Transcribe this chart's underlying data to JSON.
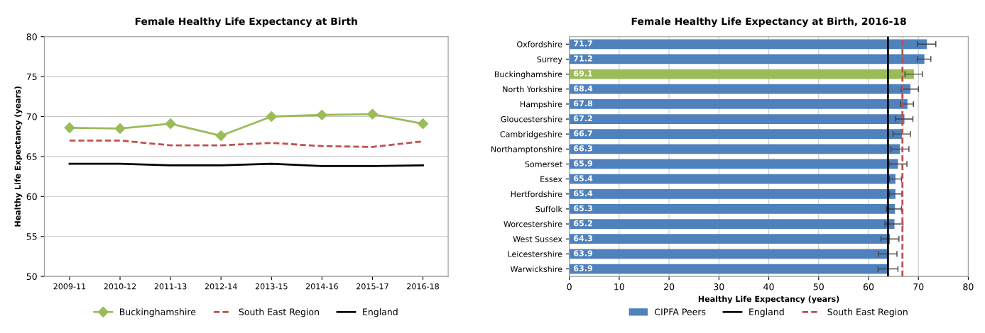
{
  "chart_data": [
    {
      "type": "line",
      "title": "Female Healthy Life Expectancy at Birth",
      "ylabel": "Healthy Life Expectancy (years)",
      "categories": [
        "2009-11",
        "2010-12",
        "2011-13",
        "2012-14",
        "2013-15",
        "2014-16",
        "2015-17",
        "2016-18"
      ],
      "series": [
        {
          "name": "Buckinghamshire",
          "color": "#9bbb59",
          "marker": "diamond",
          "line_style": "solid",
          "values": [
            68.6,
            68.5,
            69.1,
            67.6,
            70.0,
            70.2,
            70.3,
            69.1
          ]
        },
        {
          "name": "South East Region",
          "color": "#c0504d",
          "marker": "none",
          "line_style": "dashed",
          "values": [
            67.0,
            67.0,
            66.4,
            66.4,
            66.7,
            66.3,
            66.2,
            66.9
          ]
        },
        {
          "name": "England",
          "color": "#000000",
          "marker": "none",
          "line_style": "solid",
          "values": [
            64.1,
            64.1,
            63.9,
            63.9,
            64.1,
            63.8,
            63.8,
            63.9
          ]
        }
      ],
      "ylim": [
        50,
        80
      ],
      "yticks": [
        50,
        55,
        60,
        65,
        70,
        75,
        80
      ],
      "grid": "y",
      "legend": "bottom"
    },
    {
      "type": "bar",
      "orientation": "horizontal",
      "title": "Female Healthy Life Expectancy at Birth, 2016-18",
      "xlabel": "Healthy Life Expectancy (years)",
      "categories": [
        "Oxfordshire",
        "Surrey",
        "Buckinghamshire",
        "North Yorkshire",
        "Hampshire",
        "Gloucestershire",
        "Cambridgeshire",
        "Northamptonshire",
        "Somerset",
        "Essex",
        "Hertfordshire",
        "Suffolk",
        "Worcestershire",
        "West Sussex",
        "Leicestershire",
        "Warwickshire"
      ],
      "series": [
        {
          "name": "CIPFA Peers",
          "color": "#4f81bd",
          "colors": [
            "#4f81bd",
            "#4f81bd",
            "#9bbb59",
            "#4f81bd",
            "#4f81bd",
            "#4f81bd",
            "#4f81bd",
            "#4f81bd",
            "#4f81bd",
            "#4f81bd",
            "#4f81bd",
            "#4f81bd",
            "#4f81bd",
            "#4f81bd",
            "#4f81bd",
            "#4f81bd"
          ],
          "values": [
            71.7,
            71.2,
            69.1,
            68.4,
            67.8,
            67.2,
            66.7,
            66.3,
            65.9,
            65.4,
            65.4,
            65.3,
            65.2,
            64.3,
            63.9,
            63.9
          ],
          "errors": [
            [
              69.8,
              73.5
            ],
            [
              69.8,
              72.5
            ],
            [
              67.3,
              70.8
            ],
            [
              66.6,
              70.0
            ],
            [
              66.4,
              69.0
            ],
            [
              65.4,
              68.9
            ],
            [
              64.9,
              68.4
            ],
            [
              64.5,
              68.1
            ],
            [
              64.1,
              67.7
            ],
            [
              64.2,
              66.6
            ],
            [
              64.2,
              66.7
            ],
            [
              63.6,
              66.6
            ],
            [
              63.3,
              66.9
            ],
            [
              62.5,
              66.1
            ],
            [
              62.0,
              65.7
            ],
            [
              61.9,
              65.9
            ]
          ]
        }
      ],
      "data_labels": true,
      "ref_lines": [
        {
          "axis": "x",
          "value": 63.9,
          "label": "England",
          "color": "#000000",
          "line_style": "solid"
        },
        {
          "axis": "x",
          "value": 66.8,
          "label": "South East Region",
          "color": "#c0504d",
          "line_style": "dashed"
        }
      ],
      "xlim": [
        0,
        80
      ],
      "xticks": [
        0,
        10,
        20,
        30,
        40,
        50,
        60,
        70,
        80
      ],
      "grid": "x",
      "legend": "bottom"
    }
  ]
}
